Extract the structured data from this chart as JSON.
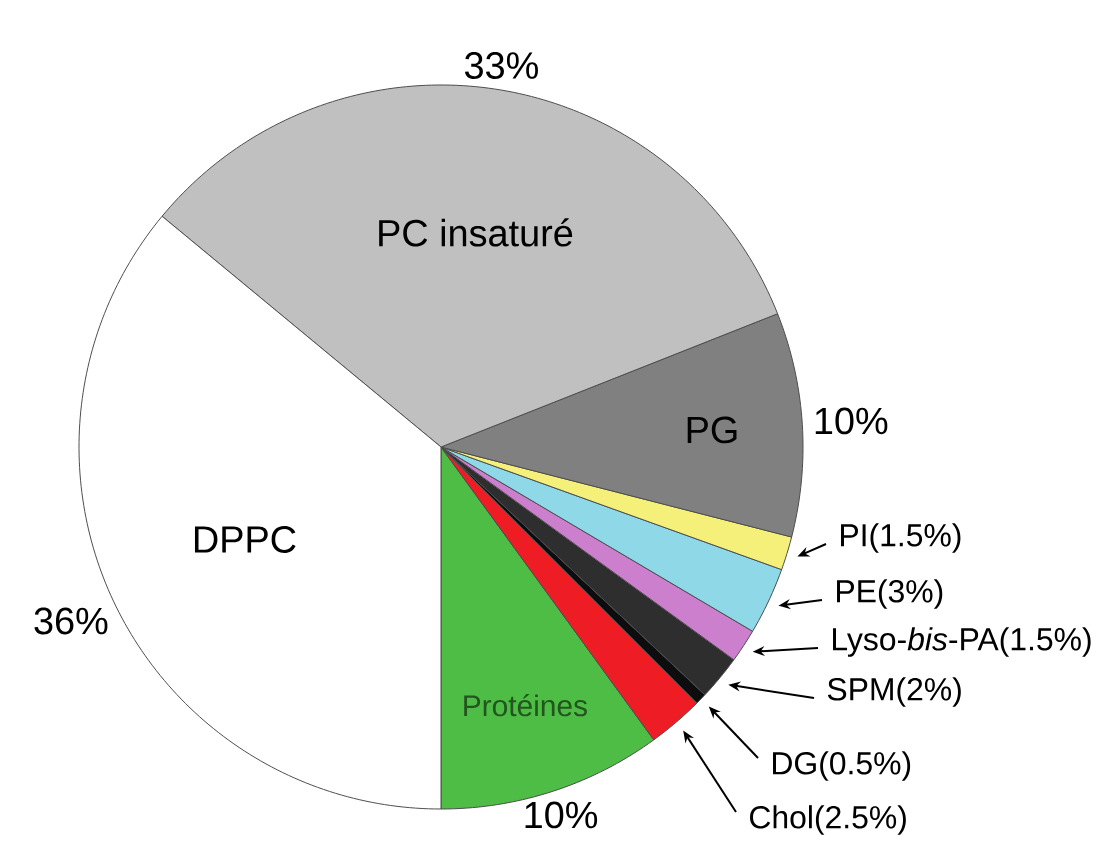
{
  "chart_data": {
    "type": "pie",
    "categories": [
      "Protéines",
      "Chol(2.5%)",
      "DG(0.5%)",
      "SPM(2%)",
      "Lyso-*bis*-PA(1.5%)",
      "PE(3%)",
      "PI(1.5%)",
      "PG",
      "PC insaturé",
      "DPPC"
    ],
    "values": [
      10,
      2.5,
      0.5,
      2,
      1.5,
      3,
      1.5,
      10,
      33,
      36
    ],
    "colors": [
      "#4dbd45",
      "#ee1c24",
      "#0d0d0d",
      "#2e2e2e",
      "#cc7fcc",
      "#8ed8e8",
      "#f5f07a",
      "#808080",
      "#c0c0c0",
      "#ffffff"
    ],
    "value_labels": [
      "10%",
      null,
      null,
      null,
      null,
      null,
      null,
      "10%",
      "33%",
      "36%"
    ]
  }
}
